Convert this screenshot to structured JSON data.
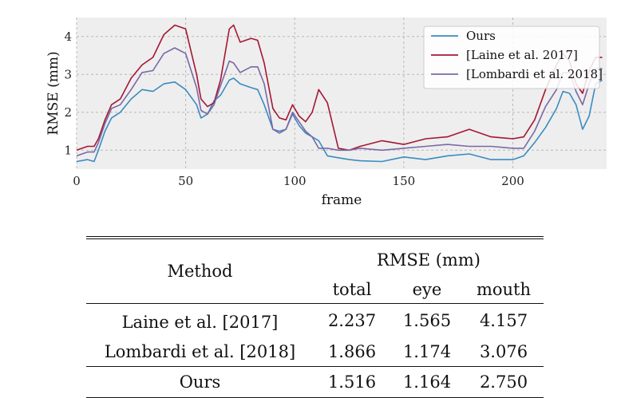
{
  "chart_data": {
    "type": "line",
    "xlabel": "frame",
    "ylabel": "RMSE (mm)",
    "xlim": [
      0,
      243
    ],
    "ylim": [
      0.5,
      4.5
    ],
    "xticks": [
      0,
      50,
      100,
      150,
      200
    ],
    "yticks": [
      1,
      2,
      3,
      4
    ],
    "grid": true,
    "legend_position": "top-right",
    "background": "#eeeeee",
    "series": [
      {
        "name": "Ours",
        "color": "#3b8bc0",
        "x": [
          0,
          5,
          8,
          10,
          13,
          16,
          20,
          25,
          30,
          35,
          40,
          45,
          50,
          55,
          57,
          60,
          63,
          66,
          70,
          72,
          75,
          80,
          83,
          86,
          90,
          93,
          96,
          99,
          102,
          105,
          108,
          111,
          115,
          120,
          125,
          130,
          140,
          150,
          160,
          170,
          180,
          190,
          200,
          205,
          210,
          215,
          220,
          223,
          226,
          229,
          232,
          235,
          238,
          241
        ],
        "y": [
          0.7,
          0.75,
          0.7,
          1.0,
          1.5,
          1.85,
          2.0,
          2.35,
          2.6,
          2.55,
          2.75,
          2.8,
          2.6,
          2.2,
          1.85,
          1.95,
          2.3,
          2.45,
          2.85,
          2.9,
          2.75,
          2.65,
          2.6,
          2.2,
          1.55,
          1.5,
          1.55,
          1.95,
          1.65,
          1.45,
          1.35,
          1.25,
          0.85,
          0.8,
          0.75,
          0.72,
          0.7,
          0.82,
          0.75,
          0.85,
          0.9,
          0.75,
          0.75,
          0.85,
          1.2,
          1.6,
          2.1,
          2.55,
          2.5,
          2.2,
          1.55,
          1.9,
          2.75,
          2.85
        ]
      },
      {
        "name": "[Laine et al. 2017]",
        "color": "#a41733",
        "x": [
          0,
          5,
          8,
          10,
          13,
          16,
          20,
          25,
          30,
          35,
          40,
          45,
          50,
          55,
          57,
          60,
          63,
          66,
          70,
          72,
          75,
          80,
          83,
          86,
          90,
          93,
          96,
          99,
          102,
          105,
          108,
          111,
          115,
          120,
          125,
          130,
          140,
          150,
          160,
          170,
          180,
          190,
          200,
          205,
          210,
          215,
          220,
          223,
          226,
          229,
          232,
          235,
          238,
          241
        ],
        "y": [
          1.0,
          1.1,
          1.1,
          1.3,
          1.8,
          2.2,
          2.35,
          2.9,
          3.25,
          3.45,
          4.05,
          4.3,
          4.2,
          3.0,
          2.35,
          2.15,
          2.25,
          2.85,
          4.2,
          4.3,
          3.85,
          3.95,
          3.9,
          3.3,
          2.1,
          1.85,
          1.8,
          2.2,
          1.9,
          1.75,
          2.0,
          2.6,
          2.25,
          1.05,
          1.0,
          1.1,
          1.25,
          1.15,
          1.3,
          1.35,
          1.55,
          1.35,
          1.3,
          1.35,
          1.8,
          2.6,
          3.25,
          3.55,
          3.35,
          2.75,
          2.5,
          3.1,
          3.45,
          3.45
        ]
      },
      {
        "name": "[Lombardi et al. 2018]",
        "color": "#7a68a6",
        "x": [
          0,
          5,
          8,
          10,
          13,
          16,
          20,
          25,
          30,
          35,
          40,
          45,
          50,
          55,
          57,
          60,
          63,
          66,
          70,
          72,
          75,
          80,
          83,
          86,
          90,
          93,
          96,
          99,
          102,
          105,
          108,
          111,
          115,
          120,
          125,
          130,
          140,
          150,
          160,
          170,
          180,
          190,
          200,
          205,
          210,
          215,
          220,
          223,
          226,
          229,
          232,
          235,
          238,
          241
        ],
        "y": [
          0.85,
          0.95,
          0.95,
          1.2,
          1.7,
          2.1,
          2.2,
          2.6,
          3.05,
          3.1,
          3.55,
          3.7,
          3.55,
          2.65,
          2.05,
          1.95,
          2.2,
          2.7,
          3.35,
          3.3,
          3.05,
          3.2,
          3.2,
          2.75,
          1.55,
          1.45,
          1.55,
          2.0,
          1.75,
          1.5,
          1.35,
          1.05,
          1.05,
          1.0,
          1.0,
          1.05,
          1.0,
          1.05,
          1.1,
          1.15,
          1.1,
          1.1,
          1.05,
          1.05,
          1.5,
          2.15,
          2.6,
          3.05,
          3.05,
          2.55,
          2.2,
          2.75,
          3.15,
          3.15
        ]
      }
    ]
  },
  "table": {
    "header": {
      "method": "Method",
      "group": "RMSE (mm)",
      "cols": [
        "total",
        "eye",
        "mouth"
      ]
    },
    "rows": [
      {
        "method": "Laine et al. [2017]",
        "total": "2.237",
        "eye": "1.565",
        "mouth": "4.157"
      },
      {
        "method": "Lombardi et al. [2018]",
        "total": "1.866",
        "eye": "1.174",
        "mouth": "3.076"
      },
      {
        "method": "Ours",
        "total": "1.516",
        "eye": "1.164",
        "mouth": "2.750"
      }
    ]
  }
}
